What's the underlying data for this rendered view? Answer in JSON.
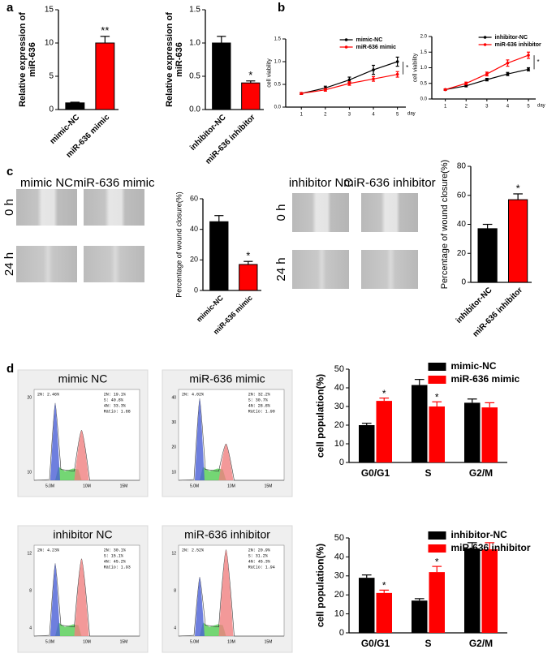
{
  "panel_labels": [
    "a",
    "b",
    "c",
    "d"
  ],
  "wound_assays": [
    {
      "columns": [
        "mimic NC",
        "miR-636 mimic"
      ],
      "rows": [
        "0 h",
        "24 h"
      ]
    },
    {
      "columns": [
        "inhibitor NC",
        "miR-636 inhibitor"
      ],
      "rows": [
        "0 h",
        "24 h"
      ]
    }
  ],
  "flow_plots": [
    {
      "title": "mimic NC",
      "peak_label": "2N: 2.46%",
      "stats": [
        "2N: 19.1%",
        "S: 40.8%",
        "4N: 33.3%",
        "Ratio: 1.88"
      ],
      "yticks": [
        "20",
        "10"
      ],
      "xticks": [
        "5.0M",
        "10M",
        "15M"
      ]
    },
    {
      "title": "miR-636 mimic",
      "peak_label": "2N: 4.02%",
      "stats": [
        "2N: 32.2%",
        "S: 30.7%",
        "4N: 28.8%",
        "Ratio: 1.90"
      ],
      "yticks": [
        "40",
        "30",
        "20",
        "10"
      ],
      "xticks": [
        "5.0M",
        "10M",
        "15M"
      ]
    },
    {
      "title": "inhibitor NC",
      "peak_label": "2N: 4.23%",
      "stats": [
        "2N: 30.1%",
        "S: 15.1%",
        "4N: 45.2%",
        "Ratio: 1.93"
      ],
      "yticks": [
        "12",
        "8",
        "4"
      ],
      "xticks": [
        "5.0M",
        "10M",
        "15M"
      ]
    },
    {
      "title": "miR-636 inhibitor",
      "peak_label": "2N: 2.52%",
      "stats": [
        "2N: 20.9%",
        "S: 31.2%",
        "4N: 45.3%",
        "Ratio: 1.94"
      ],
      "yticks": [
        "12",
        "8",
        "4"
      ],
      "xticks": [
        "5.0M",
        "10M",
        "15M"
      ]
    }
  ],
  "chart_data": [
    {
      "type": "bar",
      "ylabel": "Relative expression of miR-636",
      "categories": [
        "mimic-NC",
        "miR-636 mimic"
      ],
      "values": [
        1,
        10
      ],
      "errors": [
        0.1,
        1.0
      ],
      "colors": [
        "#000000",
        "#ff0000"
      ],
      "significance": [
        null,
        "**"
      ],
      "ylim": [
        0,
        15
      ],
      "yticks": [
        0,
        5,
        10,
        15
      ]
    },
    {
      "type": "bar",
      "ylabel": "Relative expression of miR-636",
      "categories": [
        "inhibitor-NC",
        "miR-636 inhibitor"
      ],
      "values": [
        1.0,
        0.4
      ],
      "errors": [
        0.1,
        0.03
      ],
      "colors": [
        "#000000",
        "#ff0000"
      ],
      "significance": [
        null,
        "*"
      ],
      "ylim": [
        0,
        1.5
      ],
      "yticks": [
        {
          "value": 0,
          "label": "0.0"
        },
        {
          "value": 0.5,
          "label": "0.5"
        },
        {
          "value": 1,
          "label": "1.0"
        },
        {
          "value": 1.5,
          "label": "1.5"
        }
      ]
    },
    {
      "type": "line",
      "ylabel": "cell viability",
      "xlabel": "day",
      "x": [
        1,
        2,
        3,
        4,
        5
      ],
      "xlim": [
        0.35,
        5.35
      ],
      "xticks": [
        1,
        2,
        3,
        4,
        5
      ],
      "ylim": [
        0,
        1.5
      ],
      "yticks": [
        {
          "value": 0,
          "label": "0.0"
        },
        {
          "value": 0.5,
          "label": "0.5"
        },
        {
          "value": 1,
          "label": "1.0"
        },
        {
          "value": 1.5,
          "label": "1.5"
        }
      ],
      "legend": "top",
      "significance": "*",
      "series": [
        {
          "name": "mimic-NC",
          "color": "#000000",
          "values": [
            0.3,
            0.42,
            0.6,
            0.82,
            1.0
          ],
          "errors": [
            0.02,
            0.04,
            0.06,
            0.1,
            0.1
          ]
        },
        {
          "name": "miR-636 mimic",
          "color": "#ff0000",
          "values": [
            0.3,
            0.38,
            0.52,
            0.62,
            0.72
          ],
          "errors": [
            0.02,
            0.03,
            0.04,
            0.05,
            0.06
          ]
        }
      ]
    },
    {
      "type": "line",
      "ylabel": "cell viability",
      "xlabel": "day",
      "x": [
        1,
        2,
        3,
        4,
        5
      ],
      "xlim": [
        0.35,
        5.35
      ],
      "xticks": [
        1,
        2,
        3,
        4,
        5
      ],
      "ylim": [
        0,
        2
      ],
      "yticks": [
        {
          "value": 0,
          "label": "0.0"
        },
        {
          "value": 0.5,
          "label": "0.5"
        },
        {
          "value": 1,
          "label": "1.0"
        },
        {
          "value": 1.5,
          "label": "1.5"
        },
        {
          "value": 2,
          "label": "2.0"
        }
      ],
      "legend": "top",
      "significance": "*",
      "series": [
        {
          "name": "inhibitor-NC",
          "color": "#000000",
          "values": [
            0.3,
            0.42,
            0.62,
            0.8,
            0.95
          ],
          "errors": [
            0.02,
            0.03,
            0.04,
            0.05,
            0.05
          ]
        },
        {
          "name": "miR-636 inhibitor",
          "color": "#ff0000",
          "values": [
            0.3,
            0.5,
            0.8,
            1.15,
            1.4
          ],
          "errors": [
            0.02,
            0.04,
            0.06,
            0.1,
            0.1
          ]
        }
      ]
    },
    {
      "type": "bar",
      "ylabel": "Percentage of wound closure(%)",
      "categories": [
        "mimic-NC",
        "miR-636 mimic"
      ],
      "values": [
        45,
        17
      ],
      "errors": [
        4,
        2
      ],
      "colors": [
        "#000000",
        "#ff0000"
      ],
      "significance": [
        null,
        "*"
      ],
      "ylim": [
        0,
        60
      ],
      "yticks": [
        0,
        20,
        40,
        60
      ]
    },
    {
      "type": "bar",
      "ylabel": "Percentage of wound closure(%)",
      "categories": [
        "inhibitor-NC",
        "miR-636 inhibitor"
      ],
      "values": [
        37,
        57
      ],
      "errors": [
        3,
        4
      ],
      "colors": [
        "#000000",
        "#ff0000"
      ],
      "significance": [
        null,
        "*"
      ],
      "ylim": [
        0,
        80
      ],
      "yticks": [
        0,
        20,
        40,
        60,
        80
      ]
    },
    {
      "type": "bar",
      "ylabel": "cell population(%)",
      "categories": [
        "G0/G1",
        "S",
        "G2/M"
      ],
      "ylim": [
        0,
        50
      ],
      "yticks": [
        0,
        10,
        20,
        30,
        40,
        50
      ],
      "legend": "top",
      "series": [
        {
          "name": "mimic-NC",
          "color": "#000000",
          "values": [
            20,
            41.5,
            32
          ],
          "errors": [
            1,
            3,
            2
          ]
        },
        {
          "name": "miR-636 mimic",
          "color": "#ff0000",
          "values": [
            33,
            30,
            29.5
          ],
          "errors": [
            1.5,
            2.5,
            2.5
          ],
          "significance": [
            "*",
            "*",
            null
          ]
        }
      ]
    },
    {
      "type": "bar",
      "ylabel": "cell population(%)",
      "categories": [
        "G0/G1",
        "S",
        "G2/M"
      ],
      "ylim": [
        0,
        50
      ],
      "yticks": [
        0,
        10,
        20,
        30,
        40,
        50
      ],
      "legend": "top",
      "series": [
        {
          "name": "inhibitor-NC",
          "color": "#000000",
          "values": [
            29,
            17,
            44.5
          ],
          "errors": [
            1.5,
            1,
            3
          ]
        },
        {
          "name": "miR-636 inhibitor",
          "color": "#ff0000",
          "values": [
            21,
            32,
            44
          ],
          "errors": [
            1.5,
            3,
            3.5
          ],
          "significance": [
            "*",
            "*",
            null
          ]
        }
      ]
    }
  ]
}
